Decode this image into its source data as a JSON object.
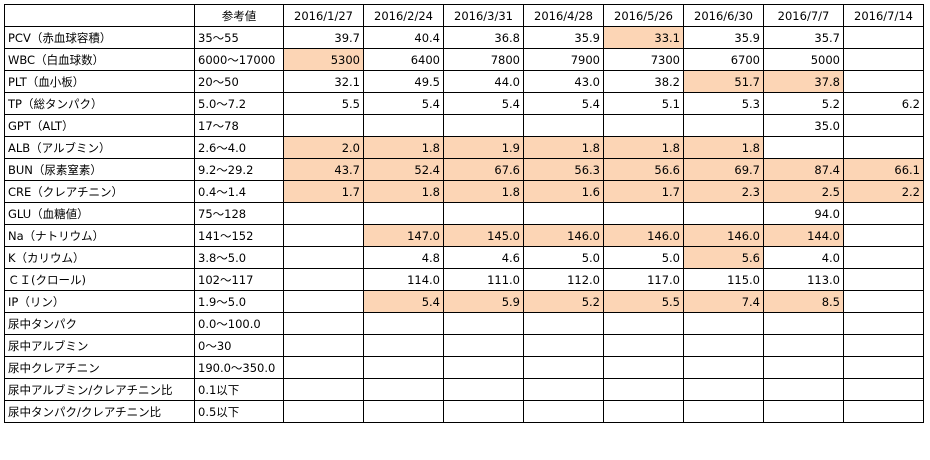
{
  "header": {
    "item": "",
    "reference": "参考値",
    "dates": [
      "2016/1/27",
      "2016/2/24",
      "2016/3/31",
      "2016/4/28",
      "2016/5/26",
      "2016/6/30",
      "2016/7/7",
      "2016/7/14"
    ]
  },
  "highlight_color": "#fcd5b5",
  "rows": [
    {
      "name": "PCV（赤血球容積）",
      "ref": "35～55",
      "values": [
        "39.7",
        "40.4",
        "36.8",
        "35.9",
        "33.1",
        "35.9",
        "35.7",
        ""
      ],
      "highlight": [
        false,
        false,
        false,
        false,
        true,
        false,
        false,
        false
      ]
    },
    {
      "name": "WBC（白血球数）",
      "ref": "6000～17000",
      "values": [
        "5300",
        "6400",
        "7800",
        "7900",
        "7300",
        "6700",
        "5000",
        ""
      ],
      "highlight": [
        true,
        false,
        false,
        false,
        false,
        false,
        false,
        false
      ]
    },
    {
      "name": "PLT（血小板）",
      "ref": "20～50",
      "values": [
        "32.1",
        "49.5",
        "44.0",
        "43.0",
        "38.2",
        "51.7",
        "37.8",
        ""
      ],
      "highlight": [
        false,
        false,
        false,
        false,
        false,
        true,
        true,
        false
      ]
    },
    {
      "name": "TP（総タンパク）",
      "ref": "5.0～7.2",
      "values": [
        "5.5",
        "5.4",
        "5.4",
        "5.4",
        "5.1",
        "5.3",
        "5.2",
        "6.2"
      ],
      "highlight": [
        false,
        false,
        false,
        false,
        false,
        false,
        false,
        false
      ]
    },
    {
      "name": "GPT（ALT）",
      "ref": "17～78",
      "values": [
        "",
        "",
        "",
        "",
        "",
        "",
        "35.0",
        ""
      ],
      "highlight": [
        false,
        false,
        false,
        false,
        false,
        false,
        false,
        false
      ]
    },
    {
      "name": "ALB（アルブミン）",
      "ref": "2.6～4.0",
      "values": [
        "2.0",
        "1.8",
        "1.9",
        "1.8",
        "1.8",
        "1.8",
        "",
        ""
      ],
      "highlight": [
        true,
        true,
        true,
        true,
        true,
        true,
        false,
        false
      ]
    },
    {
      "name": "BUN（尿素窒素）",
      "ref": "9.2～29.2",
      "values": [
        "43.7",
        "52.4",
        "67.6",
        "56.3",
        "56.6",
        "69.7",
        "87.4",
        "66.1"
      ],
      "highlight": [
        true,
        true,
        true,
        true,
        true,
        true,
        true,
        true
      ]
    },
    {
      "name": "CRE（クレアチニン）",
      "ref": "0.4～1.4",
      "values": [
        "1.7",
        "1.8",
        "1.8",
        "1.6",
        "1.7",
        "2.3",
        "2.5",
        "2.2"
      ],
      "highlight": [
        true,
        true,
        true,
        true,
        true,
        true,
        true,
        true
      ]
    },
    {
      "name": "GLU（血糖値）",
      "ref": "75～128",
      "values": [
        "",
        "",
        "",
        "",
        "",
        "",
        "94.0",
        ""
      ],
      "highlight": [
        false,
        false,
        false,
        false,
        false,
        false,
        false,
        false
      ]
    },
    {
      "name": "Na（ナトリウム）",
      "ref": "141～152",
      "values": [
        "",
        "147.0",
        "145.0",
        "146.0",
        "146.0",
        "146.0",
        "144.0",
        ""
      ],
      "highlight": [
        false,
        true,
        true,
        true,
        true,
        true,
        true,
        false
      ]
    },
    {
      "name": "K（カリウム）",
      "ref": "3.8～5.0",
      "values": [
        "",
        "4.8",
        "4.6",
        "5.0",
        "5.0",
        "5.6",
        "4.0",
        ""
      ],
      "highlight": [
        false,
        false,
        false,
        false,
        false,
        true,
        false,
        false
      ]
    },
    {
      "name": "ＣＩ(クロール)",
      "ref": "102～117",
      "values": [
        "",
        "114.0",
        "111.0",
        "112.0",
        "117.0",
        "115.0",
        "113.0",
        ""
      ],
      "highlight": [
        false,
        false,
        false,
        false,
        false,
        false,
        false,
        false
      ]
    },
    {
      "name": "IP（リン）",
      "ref": "1.9～5.0",
      "values": [
        "",
        "5.4",
        "5.9",
        "5.2",
        "5.5",
        "7.4",
        "8.5",
        ""
      ],
      "highlight": [
        false,
        true,
        true,
        true,
        true,
        true,
        true,
        false
      ]
    },
    {
      "name": "尿中タンパク",
      "ref": "0.0～100.0",
      "values": [
        "",
        "",
        "",
        "",
        "",
        "",
        "",
        ""
      ],
      "highlight": [
        false,
        false,
        false,
        false,
        false,
        false,
        false,
        false
      ]
    },
    {
      "name": "尿中アルブミン",
      "ref": "0～30",
      "values": [
        "",
        "",
        "",
        "",
        "",
        "",
        "",
        ""
      ],
      "highlight": [
        false,
        false,
        false,
        false,
        false,
        false,
        false,
        false
      ]
    },
    {
      "name": "尿中クレアチニン",
      "ref": "190.0～350.0",
      "values": [
        "",
        "",
        "",
        "",
        "",
        "",
        "",
        ""
      ],
      "highlight": [
        false,
        false,
        false,
        false,
        false,
        false,
        false,
        false
      ]
    },
    {
      "name": "尿中アルブミン/クレアチニン比",
      "ref": "0.1以下",
      "values": [
        "",
        "",
        "",
        "",
        "",
        "",
        "",
        ""
      ],
      "highlight": [
        false,
        false,
        false,
        false,
        false,
        false,
        false,
        false
      ]
    },
    {
      "name": "尿中タンパク/クレアチニン比",
      "ref": "0.5以下",
      "values": [
        "",
        "",
        "",
        "",
        "",
        "",
        "",
        ""
      ],
      "highlight": [
        false,
        false,
        false,
        false,
        false,
        false,
        false,
        false
      ]
    }
  ]
}
